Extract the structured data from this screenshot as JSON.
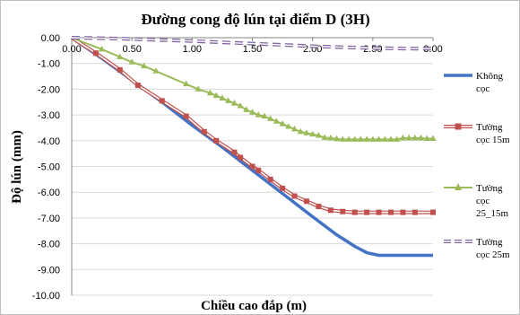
{
  "chart_data": {
    "type": "line",
    "title": "Đường cong độ lún tại điểm D (3H)",
    "xlabel": "Chiều cao đắp (m)",
    "ylabel": "Độ lún (mm)",
    "xlim": [
      0,
      3
    ],
    "ylim": [
      -10,
      0
    ],
    "x_ticks": [
      "0.00",
      "0.50",
      "1.00",
      "1.50",
      "2.00",
      "2.50",
      "3.00"
    ],
    "y_ticks": [
      "0.00",
      "-1.00",
      "-2.00",
      "-3.00",
      "-4.00",
      "-5.00",
      "-6.00",
      "-7.00",
      "-8.00",
      "-9.00",
      "-10.00"
    ],
    "grid": "horizontal",
    "legend_position": "right",
    "series": [
      {
        "name": "Không cọc",
        "legend_lines": [
          "Không",
          "cọc"
        ],
        "color": "#4472C4",
        "marker": "none",
        "x": [
          0,
          0.25,
          0.5,
          0.75,
          1.0,
          1.25,
          1.5,
          1.75,
          2.0,
          2.2,
          2.35,
          2.45,
          2.55,
          2.7,
          3.0
        ],
        "y": [
          0,
          -0.8,
          -1.65,
          -2.5,
          -3.4,
          -4.25,
          -5.15,
          -6.05,
          -6.95,
          -7.65,
          -8.1,
          -8.35,
          -8.45,
          -8.45,
          -8.45
        ]
      },
      {
        "name": "Tường cọc 15m",
        "legend_lines": [
          "Tường",
          "cọc 15m"
        ],
        "color": "#C0504D",
        "marker": "square",
        "x": [
          0,
          0.2,
          0.4,
          0.55,
          0.75,
          0.95,
          1.1,
          1.2,
          1.35,
          1.4,
          1.5,
          1.55,
          1.65,
          1.75,
          1.85,
          1.95,
          2.05,
          2.15,
          2.25,
          2.35,
          2.45,
          2.55,
          2.65,
          2.75,
          2.85,
          3.0
        ],
        "y": [
          0,
          -0.6,
          -1.25,
          -1.85,
          -2.45,
          -3.05,
          -3.65,
          -4.0,
          -4.45,
          -4.65,
          -5.0,
          -5.15,
          -5.5,
          -5.85,
          -6.15,
          -6.35,
          -6.55,
          -6.7,
          -6.75,
          -6.78,
          -6.78,
          -6.78,
          -6.78,
          -6.78,
          -6.78,
          -6.78
        ]
      },
      {
        "name": "Tường cọc 25_15m",
        "legend_lines": [
          "Tường",
          "cọc",
          "25_15m"
        ],
        "color": "#9BBB59",
        "marker": "triangle",
        "x": [
          0,
          0.25,
          0.4,
          0.5,
          0.6,
          0.7,
          0.95,
          1.05,
          1.15,
          1.2,
          1.25,
          1.3,
          1.35,
          1.4,
          1.45,
          1.5,
          1.55,
          1.6,
          1.65,
          1.7,
          1.75,
          1.8,
          1.85,
          1.9,
          1.95,
          2.0,
          2.05,
          2.1,
          2.15,
          2.2,
          2.25,
          2.3,
          2.35,
          2.4,
          2.45,
          2.5,
          2.55,
          2.6,
          2.65,
          2.7,
          2.75,
          2.8,
          2.85,
          2.9,
          2.95,
          3.0
        ],
        "y": [
          0,
          -0.45,
          -0.75,
          -0.95,
          -1.1,
          -1.3,
          -1.8,
          -2.0,
          -2.15,
          -2.25,
          -2.35,
          -2.45,
          -2.55,
          -2.65,
          -2.8,
          -2.9,
          -3.0,
          -3.05,
          -3.15,
          -3.25,
          -3.35,
          -3.45,
          -3.55,
          -3.65,
          -3.7,
          -3.75,
          -3.8,
          -3.88,
          -3.9,
          -3.93,
          -3.95,
          -3.95,
          -3.95,
          -3.95,
          -3.95,
          -3.95,
          -3.95,
          -3.95,
          -3.95,
          -3.95,
          -3.9,
          -3.9,
          -3.9,
          -3.9,
          -3.92,
          -3.92
        ]
      },
      {
        "name": "Tường cọc 25m",
        "legend_lines": [
          "Tường",
          "cọc 25m"
        ],
        "color": "#8064A2",
        "marker": "dash",
        "x": [
          0,
          0.25,
          0.5,
          0.75,
          1.0,
          1.25,
          1.5,
          1.75,
          2.0,
          2.25,
          2.5,
          2.75,
          3.0
        ],
        "y": [
          0,
          -0.02,
          -0.05,
          -0.09,
          -0.13,
          -0.18,
          -0.23,
          -0.28,
          -0.33,
          -0.37,
          -0.4,
          -0.42,
          -0.43
        ]
      }
    ]
  }
}
